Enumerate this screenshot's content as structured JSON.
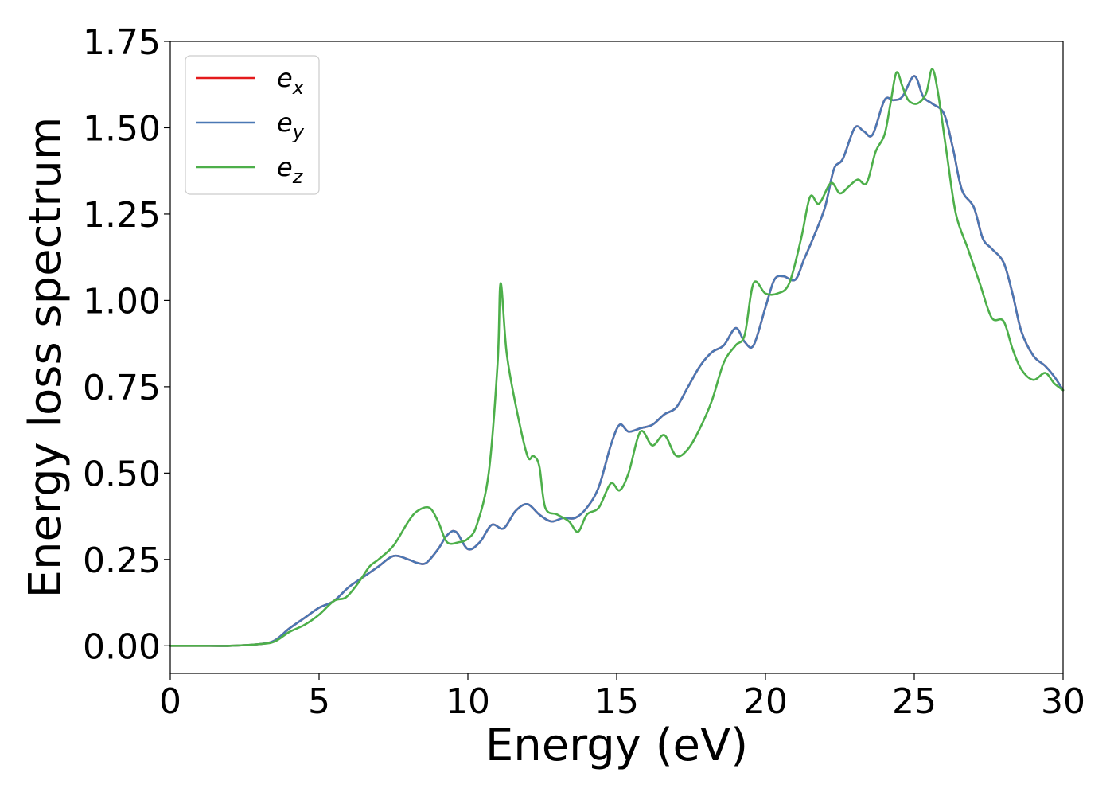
{
  "chart_data": {
    "type": "line",
    "title": "",
    "xlabel": "Energy (eV)",
    "ylabel": "Energy loss spectrum",
    "xlim": [
      0,
      30
    ],
    "ylim": [
      -0.08,
      1.75
    ],
    "x_ticks": [
      0,
      5,
      10,
      15,
      20,
      25,
      30
    ],
    "x_tick_labels": [
      "0",
      "5",
      "10",
      "15",
      "20",
      "25",
      "30"
    ],
    "y_ticks": [
      0,
      0.25,
      0.5,
      0.75,
      1.0,
      1.25,
      1.5,
      1.75
    ],
    "y_tick_labels": [
      "0.00",
      "0.25",
      "0.50",
      "0.75",
      "1.00",
      "1.25",
      "1.50",
      "1.75"
    ],
    "grid": false,
    "legend_position": "top-left",
    "series": [
      {
        "name": "e_x",
        "label_base": "e",
        "label_sub": "x",
        "color": "#e41a1c",
        "x": [
          0,
          1,
          2,
          3,
          3.5,
          4,
          4.5,
          5,
          5.5,
          6,
          6.5,
          7,
          7.5,
          8,
          8.3,
          8.6,
          9,
          9.3,
          9.6,
          10,
          10.4,
          10.8,
          11.2,
          11.6,
          12,
          12.4,
          12.8,
          13.2,
          13.6,
          14,
          14.4,
          14.8,
          15.1,
          15.4,
          15.8,
          16.2,
          16.6,
          17,
          17.4,
          17.8,
          18.2,
          18.6,
          19,
          19.3,
          19.6,
          20,
          20.3,
          20.6,
          21,
          21.3,
          21.6,
          22,
          22.3,
          22.6,
          23,
          23.3,
          23.6,
          24,
          24.3,
          24.6,
          25,
          25.3,
          25.6,
          26,
          26.3,
          26.6,
          27,
          27.3,
          27.6,
          28,
          28.3,
          28.6,
          29,
          29.4,
          29.7,
          30
        ],
        "y": [
          0,
          0,
          0,
          0.005,
          0.015,
          0.05,
          0.08,
          0.11,
          0.13,
          0.17,
          0.2,
          0.23,
          0.26,
          0.25,
          0.24,
          0.24,
          0.28,
          0.32,
          0.33,
          0.28,
          0.3,
          0.35,
          0.34,
          0.39,
          0.41,
          0.38,
          0.36,
          0.37,
          0.37,
          0.4,
          0.46,
          0.58,
          0.64,
          0.62,
          0.63,
          0.64,
          0.67,
          0.69,
          0.75,
          0.81,
          0.85,
          0.87,
          0.92,
          0.88,
          0.87,
          0.98,
          1.06,
          1.07,
          1.06,
          1.12,
          1.18,
          1.27,
          1.38,
          1.41,
          1.5,
          1.49,
          1.48,
          1.58,
          1.58,
          1.59,
          1.65,
          1.59,
          1.57,
          1.54,
          1.44,
          1.32,
          1.27,
          1.18,
          1.15,
          1.11,
          1.02,
          0.91,
          0.84,
          0.81,
          0.78,
          0.74
        ]
      },
      {
        "name": "e_y",
        "label_base": "e",
        "label_sub": "y",
        "color": "#4a78b4",
        "x": [
          0,
          1,
          2,
          3,
          3.5,
          4,
          4.5,
          5,
          5.5,
          6,
          6.5,
          7,
          7.5,
          8,
          8.3,
          8.6,
          9,
          9.3,
          9.6,
          10,
          10.4,
          10.8,
          11.2,
          11.6,
          12,
          12.4,
          12.8,
          13.2,
          13.6,
          14,
          14.4,
          14.8,
          15.1,
          15.4,
          15.8,
          16.2,
          16.6,
          17,
          17.4,
          17.8,
          18.2,
          18.6,
          19,
          19.3,
          19.6,
          20,
          20.3,
          20.6,
          21,
          21.3,
          21.6,
          22,
          22.3,
          22.6,
          23,
          23.3,
          23.6,
          24,
          24.3,
          24.6,
          25,
          25.3,
          25.6,
          26,
          26.3,
          26.6,
          27,
          27.3,
          27.6,
          28,
          28.3,
          28.6,
          29,
          29.4,
          29.7,
          30
        ],
        "y": [
          0,
          0,
          0,
          0.005,
          0.015,
          0.05,
          0.08,
          0.11,
          0.13,
          0.17,
          0.2,
          0.23,
          0.26,
          0.25,
          0.24,
          0.24,
          0.28,
          0.32,
          0.33,
          0.28,
          0.3,
          0.35,
          0.34,
          0.39,
          0.41,
          0.38,
          0.36,
          0.37,
          0.37,
          0.4,
          0.46,
          0.58,
          0.64,
          0.62,
          0.63,
          0.64,
          0.67,
          0.69,
          0.75,
          0.81,
          0.85,
          0.87,
          0.92,
          0.88,
          0.87,
          0.98,
          1.06,
          1.07,
          1.06,
          1.12,
          1.18,
          1.27,
          1.38,
          1.41,
          1.5,
          1.49,
          1.48,
          1.58,
          1.58,
          1.59,
          1.65,
          1.59,
          1.57,
          1.54,
          1.44,
          1.32,
          1.27,
          1.18,
          1.15,
          1.11,
          1.02,
          0.91,
          0.84,
          0.81,
          0.78,
          0.74
        ]
      },
      {
        "name": "e_z",
        "label_base": "e",
        "label_sub": "z",
        "color": "#4daf4a",
        "x": [
          0,
          1,
          2,
          3,
          3.5,
          4,
          4.5,
          5,
          5.5,
          5.9,
          6.3,
          6.7,
          7,
          7.5,
          8,
          8.3,
          8.7,
          9,
          9.3,
          9.7,
          10,
          10.3,
          10.7,
          11,
          11.1,
          11.3,
          11.6,
          12,
          12.2,
          12.4,
          12.6,
          13,
          13.4,
          13.7,
          14,
          14.4,
          14.8,
          15.1,
          15.4,
          15.8,
          16.2,
          16.6,
          17,
          17.4,
          17.8,
          18.2,
          18.6,
          19,
          19.3,
          19.6,
          20,
          20.4,
          20.8,
          21.2,
          21.5,
          21.8,
          22.2,
          22.5,
          22.8,
          23.1,
          23.4,
          23.7,
          24,
          24.2,
          24.4,
          24.6,
          24.8,
          25.1,
          25.4,
          25.6,
          25.8,
          26.1,
          26.4,
          26.8,
          27.2,
          27.6,
          28,
          28.3,
          28.6,
          29,
          29.4,
          29.7,
          30
        ],
        "y": [
          0,
          0,
          0,
          0.005,
          0.012,
          0.04,
          0.06,
          0.09,
          0.13,
          0.14,
          0.18,
          0.23,
          0.25,
          0.29,
          0.36,
          0.39,
          0.4,
          0.36,
          0.3,
          0.3,
          0.31,
          0.35,
          0.5,
          0.82,
          1.05,
          0.85,
          0.7,
          0.55,
          0.55,
          0.52,
          0.4,
          0.38,
          0.36,
          0.33,
          0.38,
          0.4,
          0.47,
          0.45,
          0.5,
          0.62,
          0.58,
          0.61,
          0.55,
          0.57,
          0.63,
          0.71,
          0.82,
          0.87,
          0.9,
          1.05,
          1.02,
          1.02,
          1.05,
          1.18,
          1.3,
          1.28,
          1.34,
          1.31,
          1.33,
          1.35,
          1.34,
          1.43,
          1.48,
          1.57,
          1.66,
          1.62,
          1.58,
          1.57,
          1.6,
          1.67,
          1.6,
          1.42,
          1.25,
          1.15,
          1.05,
          0.95,
          0.94,
          0.86,
          0.8,
          0.77,
          0.79,
          0.76,
          0.74
        ]
      }
    ]
  }
}
